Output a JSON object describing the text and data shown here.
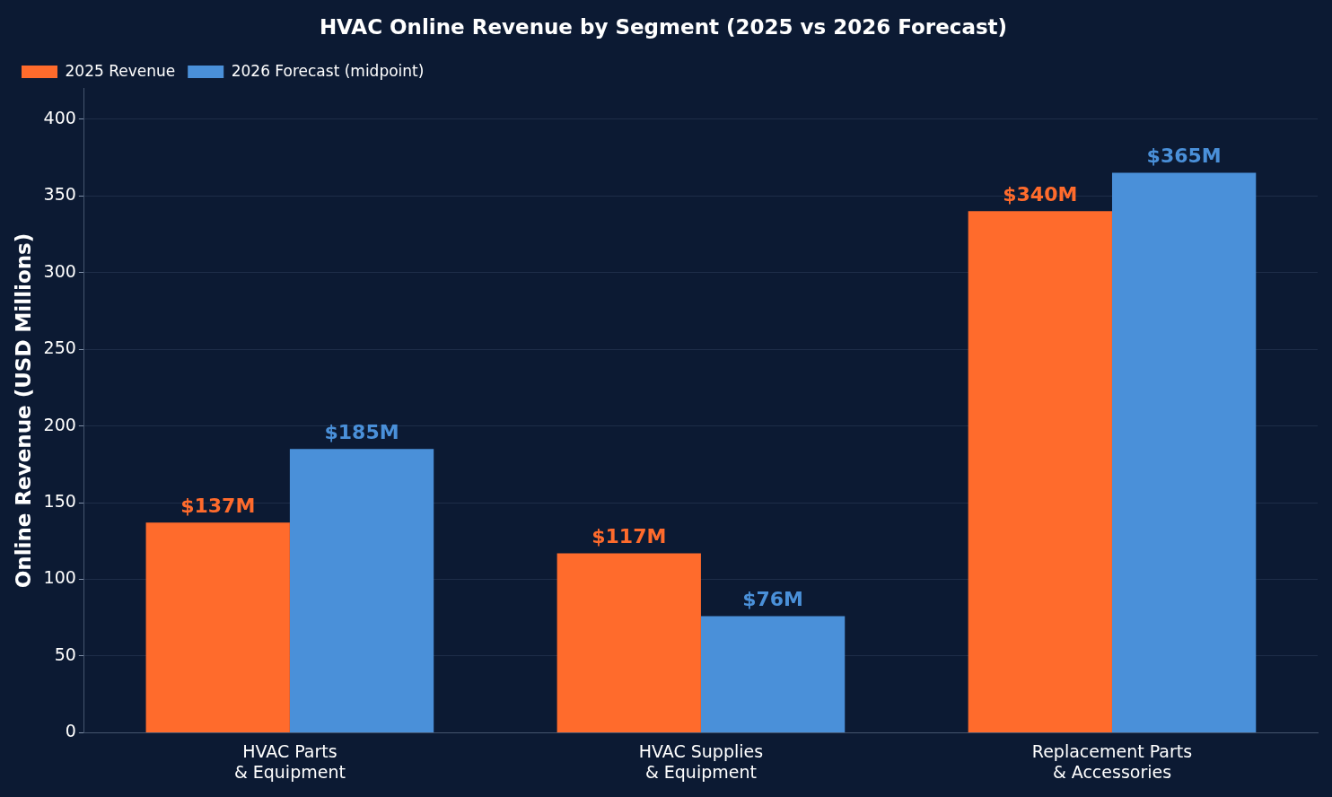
{
  "chart_data": {
    "type": "bar",
    "title": "HVAC Online Revenue by Segment (2025 vs 2026 Forecast)",
    "ylabel": "Online Revenue (USD Millions)",
    "categories": [
      "HVAC Parts\n& Equipment",
      "HVAC Supplies\n& Equipment",
      "Replacement Parts\n& Accessories"
    ],
    "series": [
      {
        "name": "2025 Revenue",
        "color": "#ff6b2c",
        "values": [
          137,
          117,
          340
        ],
        "value_labels": [
          "$137M",
          "$117M",
          "$340M"
        ]
      },
      {
        "name": "2026 Forecast (midpoint)",
        "color": "#4a90d9",
        "values": [
          185,
          76,
          365
        ],
        "value_labels": [
          "$185M",
          "$76M",
          "$365M"
        ]
      }
    ],
    "ylim": [
      0,
      420
    ],
    "yticks": [
      0,
      50,
      100,
      150,
      200,
      250,
      300,
      350,
      400
    ],
    "grid": "y",
    "legend": "top left"
  }
}
